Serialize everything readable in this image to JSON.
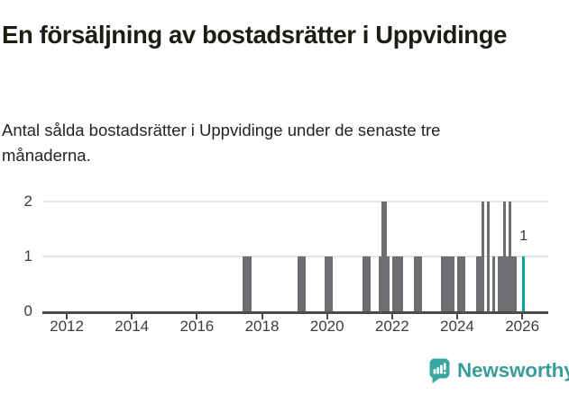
{
  "header": {
    "title": "En försäljning av bostadsrätter i Uppvidinge",
    "subtitle": "Antal sålda bostadsrätter i Uppvidinge under de senaste tre månaderna."
  },
  "chart_data": {
    "type": "bar",
    "title": "En försäljning av bostadsrätter i Uppvidinge",
    "subtitle": "Antal sålda bostadsrätter i Uppvidinge under de senaste tre månaderna.",
    "xlabel": "",
    "ylabel": "",
    "ylim": [
      0,
      2
    ],
    "y_ticks": [
      0,
      1,
      2
    ],
    "x_ticks": [
      2012,
      2014,
      2016,
      2018,
      2020,
      2022,
      2024,
      2026
    ],
    "xlim_decimal_years": [
      2011.25,
      2026.8
    ],
    "grid": "horizontal",
    "legend": "none",
    "bar_color": "#6e6e72",
    "highlight_color": "#00a39c",
    "note": "monthly rolling 3-month sales counts; months not listed are 0",
    "months": [
      {
        "month": "2017-06",
        "value": 1
      },
      {
        "month": "2017-07",
        "value": 1
      },
      {
        "month": "2017-08",
        "value": 1
      },
      {
        "month": "2019-02",
        "value": 1
      },
      {
        "month": "2019-03",
        "value": 1
      },
      {
        "month": "2019-04",
        "value": 1
      },
      {
        "month": "2019-12",
        "value": 1
      },
      {
        "month": "2020-01",
        "value": 1
      },
      {
        "month": "2020-02",
        "value": 1
      },
      {
        "month": "2021-02",
        "value": 1
      },
      {
        "month": "2021-03",
        "value": 1
      },
      {
        "month": "2021-04",
        "value": 1
      },
      {
        "month": "2021-08",
        "value": 1
      },
      {
        "month": "2021-09",
        "value": 2
      },
      {
        "month": "2021-10",
        "value": 2
      },
      {
        "month": "2021-11",
        "value": 1
      },
      {
        "month": "2022-01",
        "value": 1
      },
      {
        "month": "2022-02",
        "value": 1
      },
      {
        "month": "2022-03",
        "value": 1
      },
      {
        "month": "2022-04",
        "value": 1
      },
      {
        "month": "2022-09",
        "value": 1
      },
      {
        "month": "2022-10",
        "value": 1
      },
      {
        "month": "2022-11",
        "value": 1
      },
      {
        "month": "2023-07",
        "value": 1
      },
      {
        "month": "2023-08",
        "value": 1
      },
      {
        "month": "2023-09",
        "value": 1
      },
      {
        "month": "2023-10",
        "value": 1
      },
      {
        "month": "2023-11",
        "value": 1
      },
      {
        "month": "2024-01",
        "value": 1
      },
      {
        "month": "2024-02",
        "value": 1
      },
      {
        "month": "2024-03",
        "value": 1
      },
      {
        "month": "2024-08",
        "value": 1
      },
      {
        "month": "2024-09",
        "value": 1
      },
      {
        "month": "2024-10",
        "value": 2
      },
      {
        "month": "2024-12",
        "value": 2
      },
      {
        "month": "2025-02",
        "value": 1
      },
      {
        "month": "2025-04",
        "value": 1
      },
      {
        "month": "2025-05",
        "value": 1
      },
      {
        "month": "2025-06",
        "value": 2
      },
      {
        "month": "2025-07",
        "value": 1
      },
      {
        "month": "2025-08",
        "value": 2
      },
      {
        "month": "2025-09",
        "value": 1
      },
      {
        "month": "2025-10",
        "value": 1
      },
      {
        "month": "2026-01",
        "value": 1,
        "highlight": true
      }
    ],
    "annotation": {
      "text": "1",
      "month": "2026-01"
    }
  },
  "footer": {
    "brand": "Newsworthy",
    "brand_color": "#3a9d99",
    "logo_icon_color": "#3aa6a2"
  }
}
